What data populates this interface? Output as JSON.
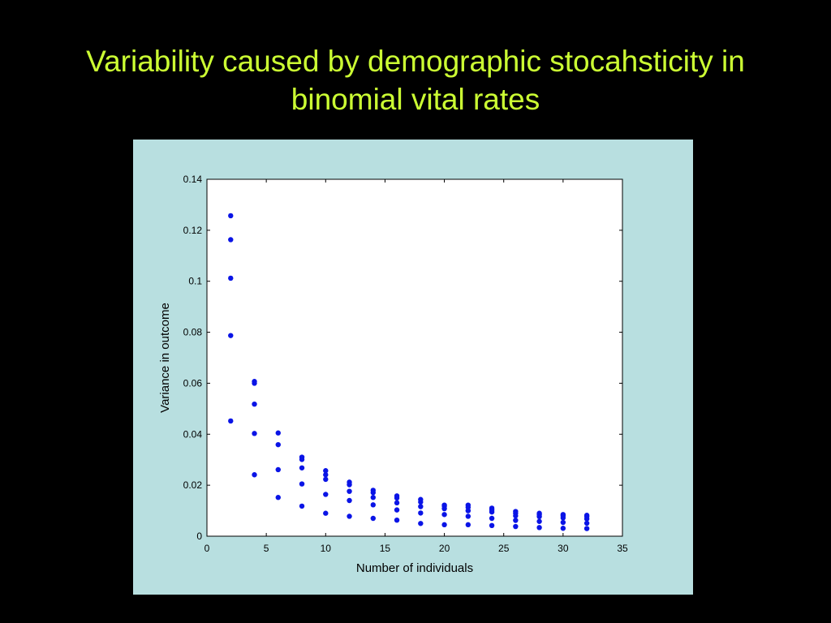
{
  "slide": {
    "title_line1": "Variability caused by demographic stocahsticity in",
    "title_line2": "binomial vital rates",
    "title_color": "#ccff33",
    "background_color": "#000000",
    "panel_color": "#b8dfe0"
  },
  "chart_data": {
    "type": "scatter",
    "title": "",
    "xlabel": "Number of individuals",
    "ylabel": "Variance in outcome",
    "xlim": [
      0,
      35
    ],
    "ylim": [
      0,
      0.14
    ],
    "xticks": [
      "0",
      "5",
      "10",
      "15",
      "20",
      "25",
      "30",
      "35"
    ],
    "yticks": [
      "0",
      "0.02",
      "0.04",
      "0.06",
      "0.08",
      "0.1",
      "0.12",
      "0.14"
    ],
    "grid": false,
    "marker_color": "#0a14e6",
    "series": [
      {
        "points": [
          [
            2,
            0.1257
          ],
          [
            2,
            0.1163
          ],
          [
            2,
            0.1012
          ],
          [
            2,
            0.0787
          ],
          [
            2,
            0.0452
          ],
          [
            4,
            0.0607
          ],
          [
            4,
            0.06
          ],
          [
            4,
            0.0518
          ],
          [
            4,
            0.0403
          ],
          [
            4,
            0.0241
          ],
          [
            6,
            0.0405
          ],
          [
            6,
            0.0359
          ],
          [
            6,
            0.0261
          ],
          [
            6,
            0.0152
          ],
          [
            8,
            0.031
          ],
          [
            8,
            0.0301
          ],
          [
            8,
            0.0268
          ],
          [
            8,
            0.0205
          ],
          [
            8,
            0.0118
          ],
          [
            10,
            0.0257
          ],
          [
            10,
            0.0241
          ],
          [
            10,
            0.0223
          ],
          [
            10,
            0.0164
          ],
          [
            10,
            0.009
          ],
          [
            12,
            0.0212
          ],
          [
            12,
            0.0202
          ],
          [
            12,
            0.0176
          ],
          [
            12,
            0.014
          ],
          [
            12,
            0.0078
          ],
          [
            14,
            0.018
          ],
          [
            14,
            0.0171
          ],
          [
            14,
            0.0152
          ],
          [
            14,
            0.0123
          ],
          [
            14,
            0.007
          ],
          [
            16,
            0.0158
          ],
          [
            16,
            0.015
          ],
          [
            16,
            0.0131
          ],
          [
            16,
            0.0103
          ],
          [
            16,
            0.0063
          ],
          [
            18,
            0.0144
          ],
          [
            18,
            0.0134
          ],
          [
            18,
            0.0116
          ],
          [
            18,
            0.0091
          ],
          [
            18,
            0.005
          ],
          [
            20,
            0.0122
          ],
          [
            20,
            0.0118
          ],
          [
            20,
            0.0108
          ],
          [
            20,
            0.0085
          ],
          [
            20,
            0.0045
          ],
          [
            22,
            0.0122
          ],
          [
            22,
            0.0113
          ],
          [
            22,
            0.01
          ],
          [
            22,
            0.0078
          ],
          [
            22,
            0.0045
          ],
          [
            24,
            0.011
          ],
          [
            24,
            0.0103
          ],
          [
            24,
            0.0095
          ],
          [
            24,
            0.007
          ],
          [
            24,
            0.0042
          ],
          [
            26,
            0.0097
          ],
          [
            26,
            0.009
          ],
          [
            26,
            0.008
          ],
          [
            26,
            0.0062
          ],
          [
            26,
            0.0038
          ],
          [
            28,
            0.009
          ],
          [
            28,
            0.0085
          ],
          [
            28,
            0.0077
          ],
          [
            28,
            0.0058
          ],
          [
            28,
            0.0034
          ],
          [
            30,
            0.0085
          ],
          [
            30,
            0.008
          ],
          [
            30,
            0.0072
          ],
          [
            30,
            0.0054
          ],
          [
            30,
            0.0031
          ],
          [
            32,
            0.0082
          ],
          [
            32,
            0.0077
          ],
          [
            32,
            0.0068
          ],
          [
            32,
            0.0051
          ],
          [
            32,
            0.003
          ]
        ]
      }
    ]
  }
}
